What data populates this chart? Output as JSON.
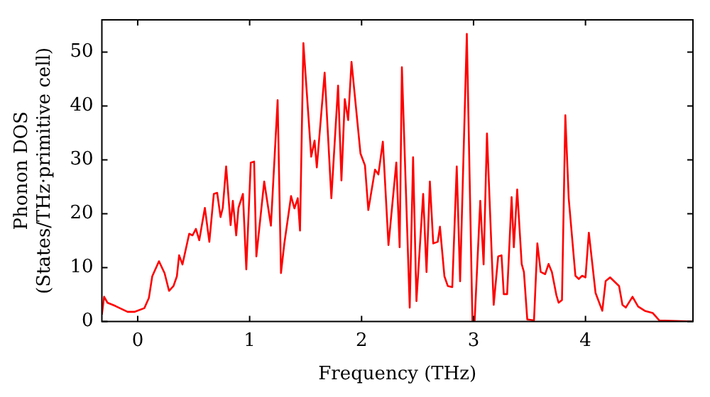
{
  "chart_data": {
    "type": "line",
    "xlabel": "Frequency (THz)",
    "ylabel": "Phonon DOS\n(States/THz·primitive cell)",
    "x": [
      -0.32,
      -0.3,
      -0.27,
      -0.2,
      -0.09,
      -0.03,
      0.06,
      0.1,
      0.13,
      0.19,
      0.24,
      0.28,
      0.32,
      0.35,
      0.37,
      0.4,
      0.46,
      0.49,
      0.52,
      0.55,
      0.6,
      0.64,
      0.68,
      0.71,
      0.74,
      0.76,
      0.79,
      0.83,
      0.85,
      0.88,
      0.9,
      0.94,
      0.97,
      1.01,
      1.04,
      1.06,
      1.13,
      1.19,
      1.25,
      1.28,
      1.31,
      1.37,
      1.4,
      1.43,
      1.45,
      1.48,
      1.55,
      1.58,
      1.6,
      1.67,
      1.73,
      1.79,
      1.82,
      1.85,
      1.88,
      1.91,
      1.99,
      2.03,
      2.06,
      2.12,
      2.15,
      2.19,
      2.24,
      2.31,
      2.34,
      2.36,
      2.43,
      2.46,
      2.49,
      2.55,
      2.58,
      2.61,
      2.64,
      2.68,
      2.7,
      2.74,
      2.77,
      2.81,
      2.85,
      2.88,
      2.94,
      2.99,
      3.01,
      3.06,
      3.09,
      3.12,
      3.18,
      3.22,
      3.25,
      3.27,
      3.3,
      3.34,
      3.36,
      3.39,
      3.43,
      3.45,
      3.48,
      3.54,
      3.57,
      3.6,
      3.64,
      3.67,
      3.7,
      3.74,
      3.76,
      3.79,
      3.82,
      3.85,
      3.91,
      3.94,
      3.97,
      4.0,
      4.03,
      4.09,
      4.15,
      4.18,
      4.22,
      4.3,
      4.33,
      4.36,
      4.42,
      4.47,
      4.53,
      4.6,
      4.66,
      4.96
    ],
    "series": [
      {
        "color": "#ff0000",
        "values": [
          1.3,
          4.6,
          3.5,
          2.9,
          1.8,
          1.8,
          2.5,
          4.4,
          8.4,
          11.2,
          9,
          5.7,
          6.6,
          8.4,
          12.3,
          10.6,
          16.3,
          16,
          17.2,
          15.1,
          21.1,
          14.8,
          23.7,
          23.9,
          19.4,
          21.1,
          28.8,
          17.9,
          22.4,
          16,
          21.1,
          23.7,
          9.7,
          29.5,
          29.7,
          12.1,
          26,
          17.8,
          41.1,
          9,
          14.5,
          23.3,
          21,
          22.9,
          16.9,
          51.7,
          30.6,
          33.6,
          28.6,
          46.2,
          22.9,
          43.8,
          26.2,
          41.3,
          37.4,
          48.2,
          31.2,
          29,
          20.7,
          28.2,
          27.3,
          33.4,
          14.2,
          29.5,
          13.8,
          47.2,
          2.6,
          30.5,
          3.8,
          23.7,
          9.2,
          26,
          14.5,
          14.8,
          17.6,
          8.4,
          6.6,
          6.4,
          28.8,
          7.5,
          53.4,
          0.2,
          0.2,
          22.4,
          10.6,
          34.9,
          3.1,
          12.1,
          12.3,
          5.1,
          5.1,
          23.1,
          13.8,
          24.5,
          10.7,
          9.2,
          0.4,
          0.2,
          14.5,
          9.2,
          8.8,
          10.7,
          9.2,
          4.9,
          3.5,
          4,
          38.3,
          22.9,
          8.5,
          7.9,
          8.5,
          8.2,
          16.5,
          5.3,
          2,
          7.5,
          8.2,
          6.6,
          3.1,
          2.6,
          4.6,
          2.8,
          2,
          1.6,
          0.2,
          0
        ]
      }
    ],
    "xlim": [
      -0.32,
      4.96
    ],
    "ylim": [
      0,
      56
    ],
    "xticks": [
      0,
      1,
      2,
      3,
      4
    ],
    "yticks": [
      0,
      10,
      20,
      30,
      40,
      50
    ],
    "marker": "none"
  }
}
